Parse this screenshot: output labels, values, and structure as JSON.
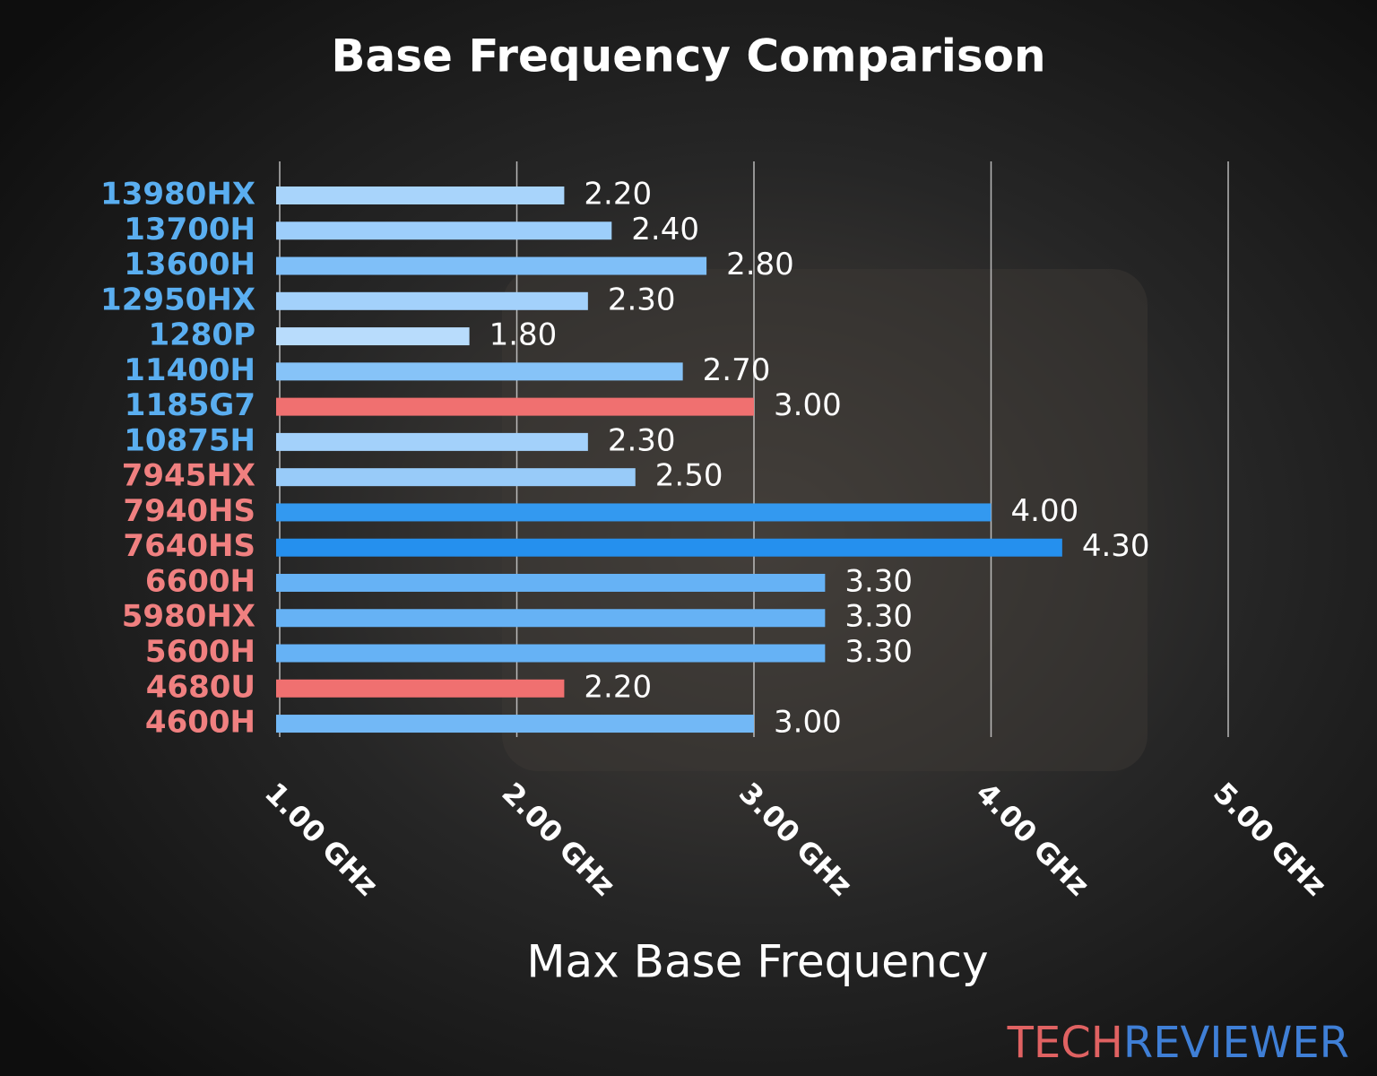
{
  "chart_data": {
    "type": "bar",
    "orientation": "horizontal",
    "title": "Base Frequency Comparison",
    "x_label": "Max Base Frequency",
    "categories": [
      "13980HX",
      "13700H",
      "13600H",
      "12950HX",
      "1280P",
      "11400H",
      "1185G7",
      "10875H",
      "7945HX",
      "7940HS",
      "7640HS",
      "6600H",
      "5980HX",
      "5600H",
      "4680U",
      "4600H"
    ],
    "category_colors": [
      "#5aaef0",
      "#5aaef0",
      "#5aaef0",
      "#5aaef0",
      "#5aaef0",
      "#5aaef0",
      "#5aaef0",
      "#5aaef0",
      "#f08080",
      "#f08080",
      "#f08080",
      "#f08080",
      "#f08080",
      "#f08080",
      "#f08080",
      "#f08080"
    ],
    "values": [
      2.2,
      2.4,
      2.8,
      2.3,
      1.8,
      2.7,
      3.0,
      2.3,
      2.5,
      4.0,
      4.3,
      3.3,
      3.3,
      3.3,
      2.2,
      3.0
    ],
    "value_labels": [
      "2.20",
      "2.40",
      "2.80",
      "2.30",
      "1.80",
      "2.70",
      "3.00",
      "2.30",
      "2.50",
      "4.00",
      "4.30",
      "3.30",
      "3.30",
      "3.30",
      "2.20",
      "3.00"
    ],
    "colors": [
      "#a8d4fb",
      "#9dcefb",
      "#7fbff8",
      "#a3d1fb",
      "#b8dcfc",
      "#86c3f8",
      "#f07070",
      "#a3d1fb",
      "#98cbf9",
      "#3399f0",
      "#2590ee",
      "#66b2f5",
      "#66b2f5",
      "#66b2f5",
      "#f07070",
      "#72b8f6"
    ],
    "xlim": [
      1,
      5
    ],
    "xticks": [
      {
        "value": 1,
        "label": "1.00 GHz"
      },
      {
        "value": 2,
        "label": "2.00 GHz"
      },
      {
        "value": 3,
        "label": "3.00 GHz"
      },
      {
        "value": 4,
        "label": "4.00 GHz"
      },
      {
        "value": 5,
        "label": "5.00 GHz"
      }
    ],
    "grid": true
  },
  "logo": [
    "TECH",
    "REVIEWER"
  ]
}
